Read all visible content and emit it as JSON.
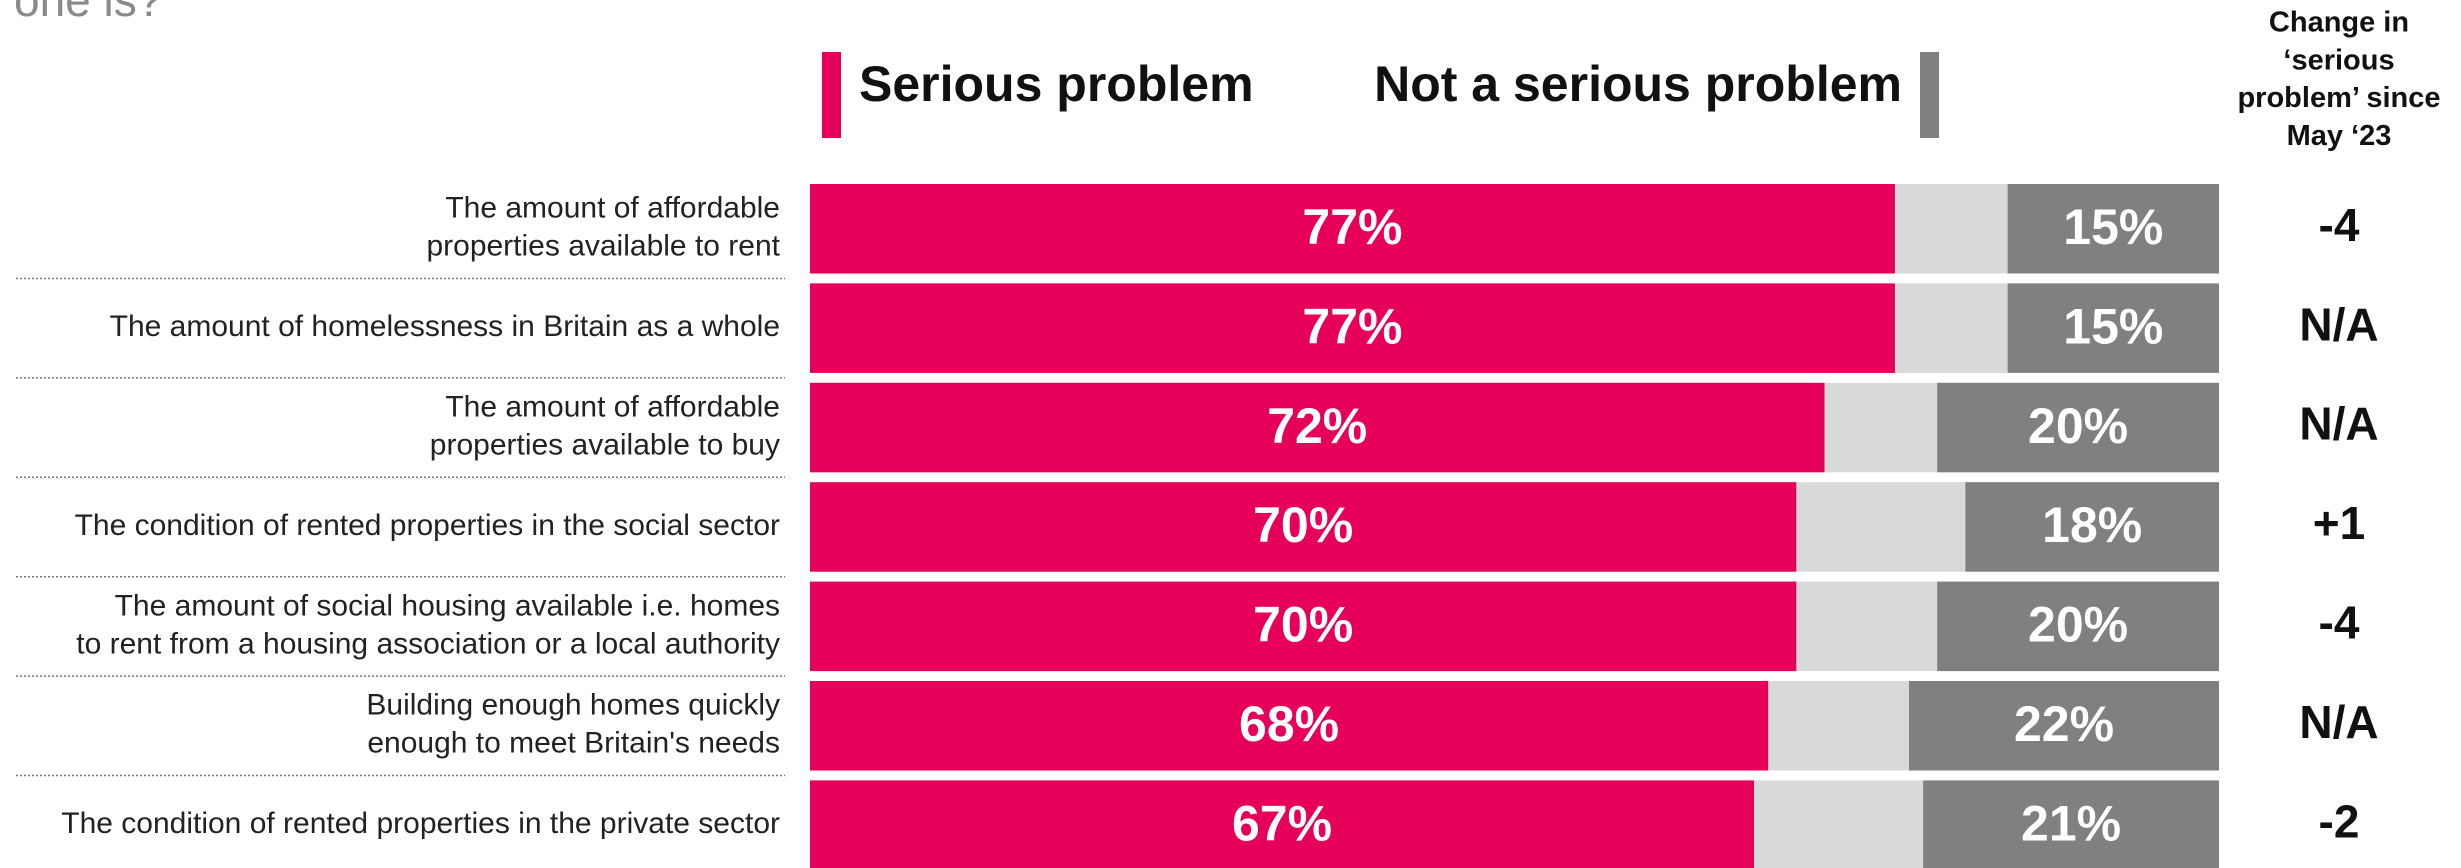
{
  "chart_data": {
    "type": "stacked_bar_horizontal",
    "subtitle": "one is?",
    "change_header": [
      "Change in",
      "‘serious",
      "problem’ since",
      "May ‘23"
    ],
    "categories": [
      [
        "The amount of affordable",
        "properties available to rent"
      ],
      [
        "The amount of homelessness in Britain as a whole"
      ],
      [
        "The amount of affordable",
        "properties available to buy"
      ],
      [
        "The condition of rented properties in the social sector"
      ],
      [
        "The amount of social housing available i.e. homes",
        "to rent from a housing association or a local authority"
      ],
      [
        "Building enough homes quickly",
        "enough to meet Britain's needs"
      ],
      [
        "The condition of rented properties in the private sector"
      ]
    ],
    "series": [
      {
        "name": "Serious problem",
        "color": "#e6005a",
        "values": [
          77,
          77,
          72,
          70,
          70,
          68,
          67
        ],
        "value_labels": [
          "77%",
          "77%",
          "72%",
          "70%",
          "70%",
          "68%",
          "67%"
        ]
      },
      {
        "name": "Not a serious problem",
        "color": "#808080",
        "values": [
          15,
          15,
          20,
          18,
          20,
          22,
          21
        ],
        "value_labels": [
          "15%",
          "15%",
          "20%",
          "18%",
          "20%",
          "22%",
          "21%"
        ]
      }
    ],
    "change": [
      "-4",
      "N/A",
      "N/A",
      "+1",
      "-4",
      "N/A",
      "-2"
    ],
    "xlim": [
      0,
      100
    ]
  }
}
